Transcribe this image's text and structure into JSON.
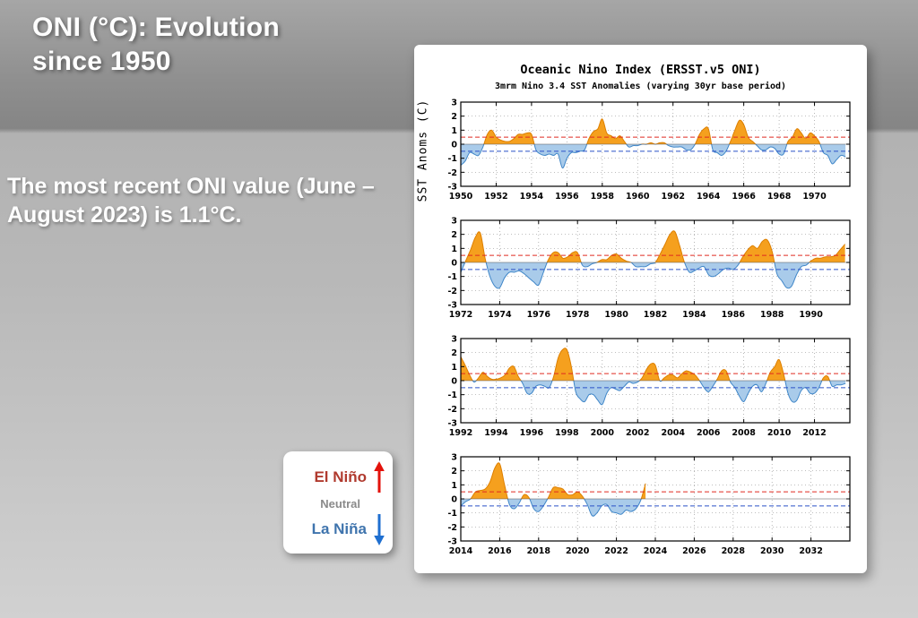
{
  "slide": {
    "title_line1": "ONI (°C): Evolution",
    "title_line2": "since 1950",
    "body": "The most recent ONI value (June – August 2023) is 1.1°C."
  },
  "legend": {
    "el_nino": "El Niño",
    "neutral": "Neutral",
    "la_nina": "La Niña",
    "colors": {
      "el_nino": "#B03A2E",
      "neutral": "#8A8A8A",
      "la_nina": "#3F74AD",
      "arrow_up": "#E3120B",
      "arrow_down": "#1F6FD0"
    }
  },
  "chart_data": {
    "type": "area",
    "title": "Oceanic Nino Index (ERSST.v5 ONI)",
    "subtitle": "3mrm Nino 3.4 SST Anomalies (varying 30yr base period)",
    "ylabel": "SST Anoms (C)",
    "ylim": [
      -3,
      3
    ],
    "yticks": [
      -3,
      -2,
      -1,
      0,
      1,
      2,
      3
    ],
    "thresholds": {
      "el_nino": 0.5,
      "la_nina": -0.5
    },
    "colors": {
      "pos_fill": "#F5A01E",
      "pos_line": "#DD7F00",
      "neg_fill": "#A9CBEA",
      "neg_line": "#3F86C8",
      "el_nino_line": "#E02B20",
      "la_nina_line": "#2B52C8",
      "grid": "#999999",
      "axis": "#000000"
    },
    "panels": [
      {
        "xlim": [
          1950,
          1972
        ],
        "xticks": [
          1950,
          1952,
          1954,
          1956,
          1958,
          1960,
          1962,
          1964,
          1966,
          1968,
          1970
        ],
        "start": 1950,
        "step": 0.25,
        "values": [
          -1.5,
          -1.2,
          -0.6,
          -0.7,
          -0.8,
          -0.2,
          0.7,
          1.0,
          0.5,
          0.3,
          0.2,
          0.2,
          0.4,
          0.7,
          0.7,
          0.8,
          0.7,
          -0.4,
          -0.7,
          -0.8,
          -0.7,
          -0.8,
          -0.7,
          -1.7,
          -1.0,
          -0.6,
          -0.6,
          -0.5,
          -0.4,
          0.4,
          0.9,
          1.1,
          1.8,
          0.8,
          0.6,
          0.4,
          0.6,
          0.2,
          -0.2,
          -0.1,
          -0.1,
          0.0,
          0.0,
          0.1,
          0.0,
          0.1,
          0.1,
          -0.1,
          -0.2,
          -0.2,
          -0.2,
          -0.4,
          -0.4,
          0.0,
          0.7,
          1.1,
          1.1,
          -0.4,
          -0.6,
          -0.8,
          -0.5,
          0.2,
          1.0,
          1.7,
          1.4,
          0.5,
          0.2,
          -0.1,
          -0.4,
          -0.4,
          -0.2,
          -0.3,
          -0.7,
          -0.7,
          0.2,
          0.5,
          1.1,
          0.8,
          0.4,
          0.8,
          0.6,
          0.2,
          -0.6,
          -0.8,
          -1.4,
          -1.1,
          -0.8,
          -0.9
        ]
      },
      {
        "xlim": [
          1972,
          1992
        ],
        "xticks": [
          1972,
          1974,
          1976,
          1978,
          1980,
          1982,
          1984,
          1986,
          1988,
          1990
        ],
        "start": 1972,
        "step": 0.25,
        "values": [
          -0.7,
          0.1,
          0.9,
          1.8,
          2.1,
          0.3,
          -1.0,
          -1.7,
          -1.8,
          -1.1,
          -0.7,
          -0.7,
          -0.6,
          -0.8,
          -1.1,
          -1.4,
          -1.6,
          -0.7,
          0.2,
          0.7,
          0.7,
          0.3,
          0.4,
          0.7,
          0.7,
          -0.2,
          -0.3,
          -0.1,
          0.0,
          0.2,
          0.2,
          0.5,
          0.6,
          0.3,
          0.1,
          0.0,
          -0.3,
          -0.3,
          -0.3,
          -0.1,
          0.0,
          0.6,
          1.3,
          2.0,
          2.2,
          1.2,
          0.0,
          -0.7,
          -0.6,
          -0.4,
          -0.3,
          -0.9,
          -1.0,
          -0.8,
          -0.5,
          -0.4,
          -0.5,
          -0.2,
          0.4,
          0.9,
          1.2,
          1.0,
          1.5,
          1.6,
          0.8,
          -0.8,
          -1.3,
          -1.8,
          -1.7,
          -0.9,
          -0.3,
          -0.2,
          0.1,
          0.3,
          0.3,
          0.4,
          0.4,
          0.5,
          0.9,
          1.3
        ]
      },
      {
        "xlim": [
          1992,
          2014
        ],
        "xticks": [
          1992,
          1994,
          1996,
          1998,
          2000,
          2002,
          2004,
          2006,
          2008,
          2010,
          2012
        ],
        "start": 1992,
        "step": 0.25,
        "values": [
          1.7,
          1.1,
          0.4,
          -0.1,
          0.2,
          0.6,
          0.3,
          0.1,
          0.1,
          0.2,
          0.4,
          0.9,
          1.0,
          0.3,
          -0.2,
          -0.9,
          -0.9,
          -0.4,
          -0.3,
          -0.4,
          -0.5,
          0.3,
          1.6,
          2.2,
          2.2,
          1.0,
          -0.8,
          -1.3,
          -1.5,
          -1.0,
          -1.0,
          -1.4,
          -1.7,
          -0.9,
          -0.5,
          -0.6,
          -0.7,
          -0.4,
          -0.1,
          -0.2,
          -0.1,
          0.2,
          0.8,
          1.2,
          1.1,
          0.0,
          0.2,
          0.4,
          0.4,
          0.2,
          0.5,
          0.7,
          0.6,
          0.4,
          0.0,
          -0.5,
          -0.8,
          -0.4,
          0.1,
          0.7,
          0.7,
          -0.1,
          -0.5,
          -1.1,
          -1.5,
          -0.9,
          -0.4,
          -0.3,
          -0.8,
          -0.2,
          0.6,
          1.0,
          1.5,
          0.5,
          -0.9,
          -1.5,
          -1.4,
          -0.7,
          -0.5,
          -0.9,
          -0.9,
          -0.5,
          0.2,
          0.3,
          -0.4,
          -0.3,
          -0.3,
          -0.2
        ]
      },
      {
        "xlim": [
          2014,
          2034
        ],
        "xticks": [
          2014,
          2016,
          2018,
          2020,
          2022,
          2024,
          2026,
          2028,
          2030,
          2032
        ],
        "start": 2014,
        "step": 0.25,
        "values": [
          -0.5,
          -0.2,
          0.0,
          0.5,
          0.6,
          0.7,
          1.2,
          2.2,
          2.5,
          1.0,
          -0.4,
          -0.7,
          -0.3,
          0.3,
          0.1,
          -0.7,
          -0.9,
          -0.5,
          0.1,
          0.8,
          0.8,
          0.7,
          0.3,
          0.3,
          0.5,
          0.2,
          -0.4,
          -1.2,
          -1.0,
          -0.5,
          -0.4,
          -0.9,
          -1.0,
          -1.1,
          -0.8,
          -0.9,
          -0.7,
          -0.1,
          1.1
        ]
      }
    ]
  }
}
